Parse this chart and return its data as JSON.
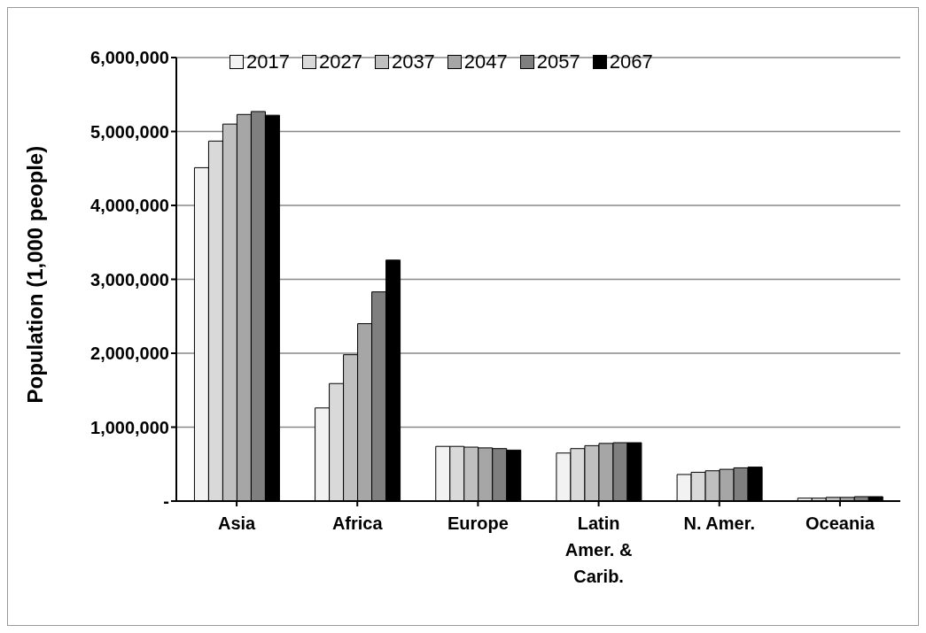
{
  "chart_data": {
    "type": "bar",
    "ylabel": "Population (1,000 people)",
    "categories": [
      "Asia",
      "Africa",
      "Europe",
      "Latin Amer. & Carib.",
      "N. Amer.",
      "Oceania"
    ],
    "series": [
      {
        "name": "2017",
        "color": "#f2f2f2",
        "values": [
          4510000,
          1260000,
          740000,
          650000,
          360000,
          40000
        ]
      },
      {
        "name": "2027",
        "color": "#d9d9d9",
        "values": [
          4870000,
          1590000,
          740000,
          710000,
          390000,
          40000
        ]
      },
      {
        "name": "2037",
        "color": "#bfbfbf",
        "values": [
          5100000,
          1980000,
          730000,
          750000,
          410000,
          50000
        ]
      },
      {
        "name": "2047",
        "color": "#a6a6a6",
        "values": [
          5230000,
          2400000,
          720000,
          780000,
          430000,
          50000
        ]
      },
      {
        "name": "2057",
        "color": "#7f7f7f",
        "values": [
          5270000,
          2830000,
          710000,
          790000,
          450000,
          60000
        ]
      },
      {
        "name": "2067",
        "color": "#000000",
        "values": [
          5220000,
          3260000,
          690000,
          790000,
          460000,
          60000
        ]
      }
    ],
    "ylim": [
      0,
      6000000
    ],
    "yticks": [
      {
        "value": 0,
        "label": "-"
      },
      {
        "value": 1000000,
        "label": "1,000,000"
      },
      {
        "value": 2000000,
        "label": "2,000,000"
      },
      {
        "value": 3000000,
        "label": "3,000,000"
      },
      {
        "value": 4000000,
        "label": "4,000,000"
      },
      {
        "value": 5000000,
        "label": "5,000,000"
      },
      {
        "value": 6000000,
        "label": "6,000,000"
      }
    ],
    "grid": "y",
    "legend": "top left"
  }
}
